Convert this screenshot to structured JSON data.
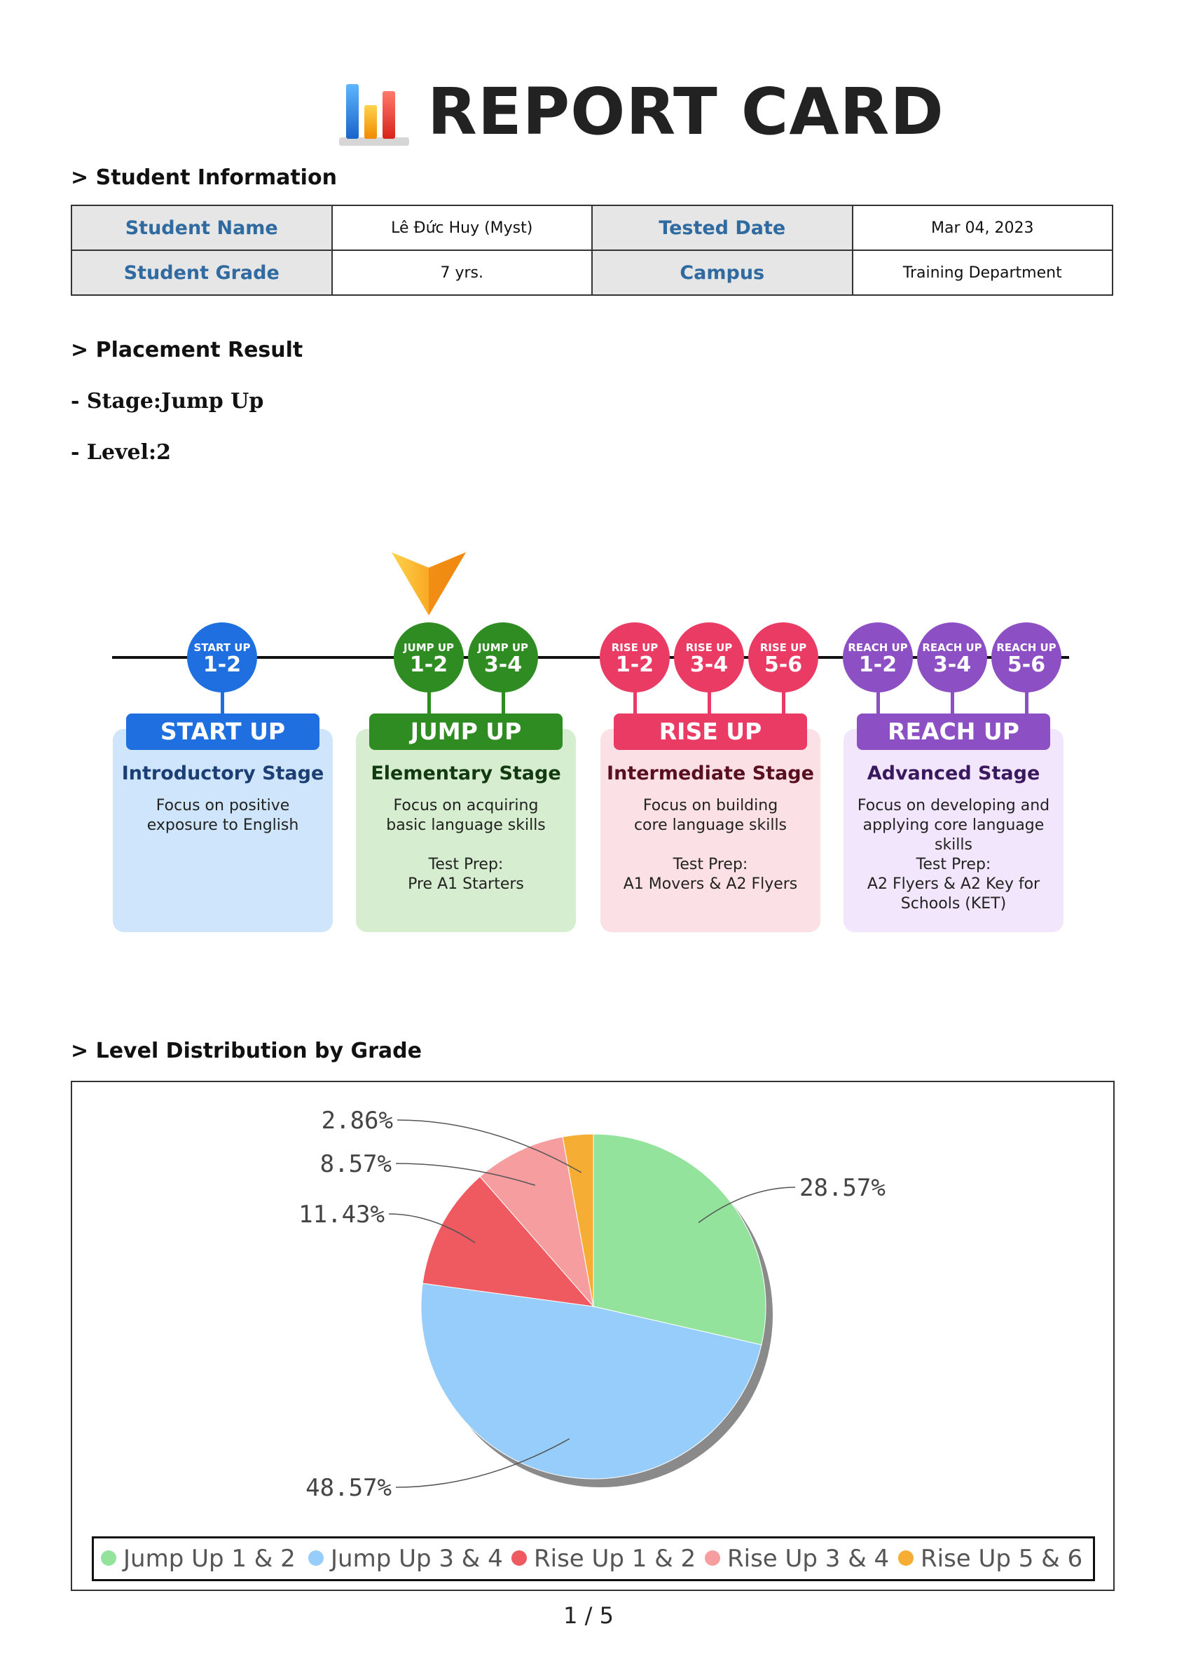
{
  "header": {
    "title": "REPORT CARD",
    "logo_icon": "bar-chart-icon"
  },
  "student_info": {
    "heading": "> Student Information",
    "name_label": "Student Name",
    "name_value": "Lê Đức Huy (Myst)",
    "date_label": "Tested Date",
    "date_value": "Mar 04, 2023",
    "grade_label": "Student Grade",
    "grade_value": "7 yrs.",
    "campus_label": "Campus",
    "campus_value": "Training Department"
  },
  "placement": {
    "heading": "> Placement Result",
    "stage_line": "- Stage:Jump Up",
    "level_line": "- Level:2"
  },
  "stages": [
    {
      "banner": "START UP",
      "name": "Introductory Stage",
      "desc": [
        "Focus on positive",
        "exposure to English"
      ],
      "prep": [],
      "color": "#1f6fe0",
      "card_color": "#cfe5fb",
      "name_color": "#1b3f74",
      "levels": [
        {
          "top": "START UP",
          "num": "1-2"
        }
      ]
    },
    {
      "banner": "JUMP UP",
      "name": "Elementary Stage",
      "desc": [
        "Focus on acquiring",
        "basic language skills"
      ],
      "prep": [
        "Test Prep:",
        "Pre A1 Starters"
      ],
      "color": "#2e8c22",
      "card_color": "#d6eecf",
      "name_color": "#123a10",
      "levels": [
        {
          "top": "JUMP UP",
          "num": "1-2"
        },
        {
          "top": "JUMP UP",
          "num": "3-4"
        }
      ]
    },
    {
      "banner": "RISE UP",
      "name": "Intermediate Stage",
      "desc": [
        "Focus on building",
        "core language skills"
      ],
      "prep": [
        "Test Prep:",
        "A1 Movers & A2 Flyers"
      ],
      "color": "#ea3b64",
      "card_color": "#fbe0e6",
      "name_color": "#5a0f1e",
      "levels": [
        {
          "top": "RISE UP",
          "num": "1-2"
        },
        {
          "top": "RISE UP",
          "num": "3-4"
        },
        {
          "top": "RISE UP",
          "num": "5-6"
        }
      ]
    },
    {
      "banner": "REACH UP",
      "name": "Advanced Stage",
      "desc": [
        "Focus on developing and",
        "applying core language skills"
      ],
      "prep": [
        "Test Prep:",
        "A2 Flyers & A2 Key for",
        "Schools (KET)"
      ],
      "color": "#8c4fc4",
      "card_color": "#f1e6fb",
      "name_color": "#3a1860",
      "levels": [
        {
          "top": "REACH UP",
          "num": "1-2"
        },
        {
          "top": "REACH UP",
          "num": "3-4"
        },
        {
          "top": "REACH UP",
          "num": "5-6"
        }
      ]
    }
  ],
  "marker": {
    "stage_index": 1,
    "level": 2,
    "color": "#f7a21b"
  },
  "distribution": {
    "heading": "> Level Distribution by Grade"
  },
  "chart_data": {
    "type": "pie",
    "categories": [
      "Jump Up 1 & 2",
      "Jump Up 3 & 4",
      "Rise Up 1 & 2",
      "Rise Up 3 & 4",
      "Rise Up 5 & 6"
    ],
    "values": [
      28.57,
      48.57,
      11.43,
      8.57,
      2.86
    ],
    "labels": [
      "28.57%",
      "48.57%",
      "11.43%",
      "8.57%",
      "2.86%"
    ],
    "colors": [
      "#93e39d",
      "#97cdfa",
      "#ee5a60",
      "#f69da0",
      "#f5ad33"
    ],
    "legend": "bottom"
  },
  "footer": {
    "page_number": "1 / 5"
  }
}
